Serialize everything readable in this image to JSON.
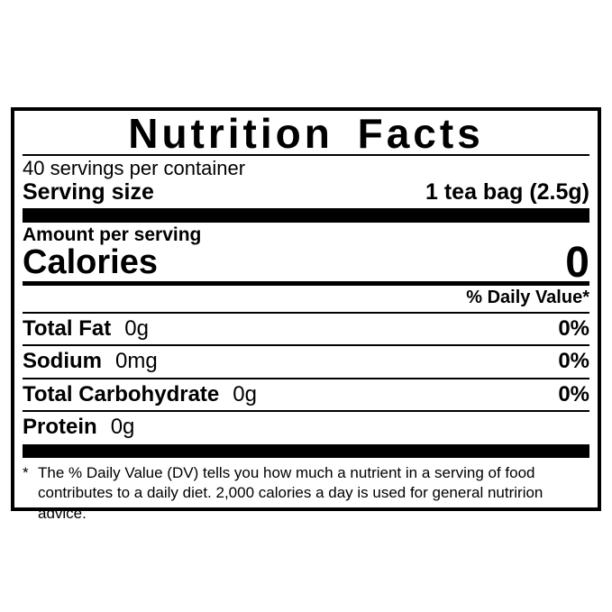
{
  "label": {
    "title": "Nutrition Facts",
    "servings_per_container": "40 servings per container",
    "serving_size_label": "Serving size",
    "serving_size_value": "1 tea bag (2.5g)",
    "amount_per_serving": "Amount per serving",
    "calories_label": "Calories",
    "calories_value": "0",
    "daily_value_header": "% Daily Value*",
    "nutrients": [
      {
        "name": "Total Fat",
        "amount": "0g",
        "dv": "0%"
      },
      {
        "name": "Sodium",
        "amount": "0mg",
        "dv": "0%"
      },
      {
        "name": "Total Carbohydrate",
        "amount": "0g",
        "dv": "0%"
      },
      {
        "name": "Protein",
        "amount": "0g",
        "dv": ""
      }
    ],
    "footnote_marker": "*",
    "footnote_text": "The % Daily Value (DV) tells you how much a nutrient in a serving of food contributes to a daily diet. 2,000 calories a day is used for general nutririon advice.",
    "colors": {
      "ink": "#000000",
      "background": "#ffffff"
    }
  }
}
